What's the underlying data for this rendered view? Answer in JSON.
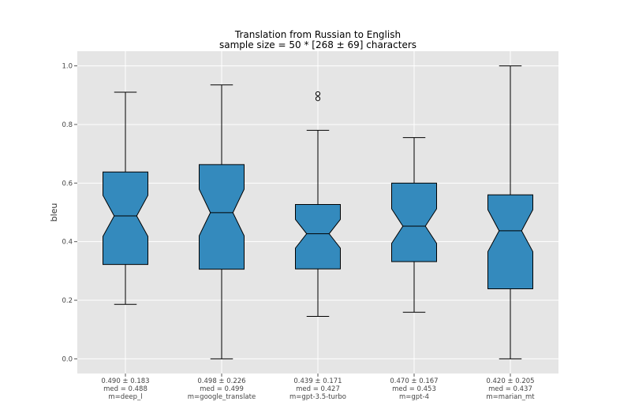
{
  "chart_data": {
    "type": "boxplot",
    "title": "Translation from Russian to English",
    "subtitle": "sample size = 50 * [268 ± 69] characters",
    "xlabel": "",
    "ylabel": "bleu",
    "ylim": [
      -0.05,
      1.05
    ],
    "yticks": [
      "0.0",
      "0.2",
      "0.4",
      "0.6",
      "0.8",
      "1.0"
    ],
    "grid": true,
    "notched": true,
    "colors": {
      "box_fill": "#348abd",
      "background": "#e5e5e5",
      "grid": "#ffffff",
      "edge": "#000000"
    },
    "boxes": [
      {
        "label_lines": [
          "0.490 ± 0.183",
          "med = 0.488",
          "m=deep_l"
        ],
        "whisker_low": 0.186,
        "q1": 0.322,
        "median": 0.488,
        "q3": 0.638,
        "whisker_high": 0.91,
        "notch_low": 0.418,
        "notch_high": 0.558,
        "outliers": []
      },
      {
        "label_lines": [
          "0.498 ± 0.226",
          "med = 0.499",
          "m=google_translate"
        ],
        "whisker_low": 0.0,
        "q1": 0.306,
        "median": 0.499,
        "q3": 0.663,
        "whisker_high": 0.935,
        "notch_low": 0.42,
        "notch_high": 0.579,
        "outliers": []
      },
      {
        "label_lines": [
          "0.439 ± 0.171",
          "med = 0.427",
          "m=gpt-3.5-turbo"
        ],
        "whisker_low": 0.145,
        "q1": 0.307,
        "median": 0.427,
        "q3": 0.527,
        "whisker_high": 0.78,
        "notch_low": 0.378,
        "notch_high": 0.476,
        "outliers": [
          0.888,
          0.905
        ]
      },
      {
        "label_lines": [
          "0.470 ± 0.167",
          "med = 0.453",
          "m=gpt-4"
        ],
        "whisker_low": 0.159,
        "q1": 0.332,
        "median": 0.453,
        "q3": 0.6,
        "whisker_high": 0.755,
        "notch_low": 0.394,
        "notch_high": 0.512,
        "outliers": []
      },
      {
        "label_lines": [
          "0.420 ± 0.205",
          "med = 0.437",
          "m=marian_mt"
        ],
        "whisker_low": 0.0,
        "q1": 0.239,
        "median": 0.437,
        "q3": 0.56,
        "whisker_high": 1.0,
        "notch_low": 0.366,
        "notch_high": 0.509,
        "outliers": []
      }
    ]
  }
}
